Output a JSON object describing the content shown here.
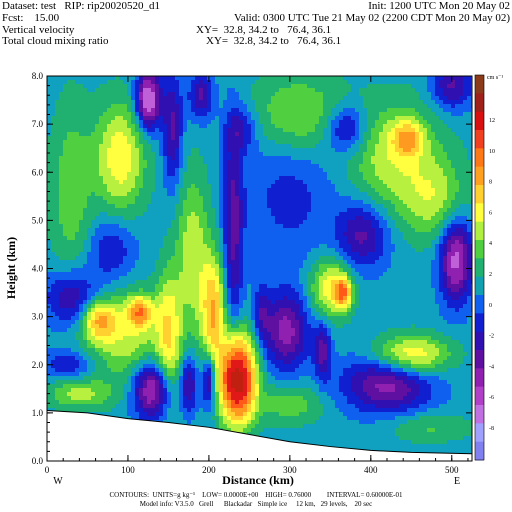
{
  "header": {
    "dataset": "Dataset: test   RIP: rip20020520_d1",
    "init": "Init: 1200 UTC Mon 20 May 02",
    "fcst": "Fcst:    15.00",
    "valid": "Valid: 0300 UTC Tue 21 May 02 (2200 CDT Mon 20 May 02)",
    "field1": "Vertical velocity",
    "xy1": "XY=  32.8, 34.2 to   76.4, 36.1",
    "field2": "Total cloud mixing ratio",
    "xy2": "XY=  32.8, 34.2 to   76.4, 36.1"
  },
  "footer": {
    "contours": "CONTOURS:  UNITS=g kg⁻¹    LOW= 0.0000E+00    HIGH= 0.76000         INTERVAL= 0.60000E-01",
    "model": "Model info: V3.5.0   Grell      Blackadar   Simple ice     12 km,   29 levels,    20 sec"
  },
  "chart_data": {
    "type": "heatmap",
    "title": "",
    "xlabel": "Distance (km)",
    "ylabel": "Height (km)",
    "xlim": [
      0,
      525
    ],
    "ylim": [
      0,
      8
    ],
    "xticks": [
      "0",
      "100",
      "200",
      "300",
      "400",
      "500"
    ],
    "yticks": [
      "0.0",
      "1.0",
      "2.0",
      "3.0",
      "4.0",
      "5.0",
      "6.0",
      "7.0",
      "8.0"
    ],
    "x_end_labels": {
      "left": "W",
      "right": "E"
    },
    "colorbar_unit": "cm s⁻¹",
    "colorbar_labels": [
      "12",
      "10",
      "8",
      "6",
      "4",
      "2",
      "0",
      "-2",
      "-4",
      "-6",
      "-8"
    ],
    "colorbar_colors": [
      "#8b3a1a",
      "#a0201a",
      "#d81010",
      "#f04020",
      "#ff7818",
      "#ffa020",
      "#ffd030",
      "#ffff40",
      "#b0f040",
      "#50d040",
      "#20b070",
      "#10a0b0",
      "#1060f0",
      "#1020d0",
      "#3010b0",
      "#6010a0",
      "#9020b0",
      "#b040c8",
      "#c070e0",
      "#a0a0ff",
      "#8080f0"
    ],
    "background_color": "#1010c8",
    "terrain_km": [
      [
        0,
        1.05
      ],
      [
        50,
        1.0
      ],
      [
        100,
        0.88
      ],
      [
        150,
        0.8
      ],
      [
        200,
        0.7
      ],
      [
        250,
        0.55
      ],
      [
        300,
        0.4
      ],
      [
        350,
        0.3
      ],
      [
        400,
        0.22
      ],
      [
        450,
        0.18
      ],
      [
        525,
        0.15
      ]
    ],
    "features": [
      {
        "x": 40,
        "y": 1.4,
        "rx": 40,
        "ry": 0.3,
        "value": 2.5
      },
      {
        "x": 130,
        "y": 1.5,
        "rx": 24,
        "ry": 0.6,
        "value": -5
      },
      {
        "x": 175,
        "y": 1.6,
        "rx": 10,
        "ry": 0.6,
        "value": -3
      },
      {
        "x": 200,
        "y": 1.7,
        "rx": 9,
        "ry": 0.55,
        "value": -4
      },
      {
        "x": 150,
        "y": 2.6,
        "rx": 15,
        "ry": 1.3,
        "value": 4
      },
      {
        "x": 180,
        "y": 4.3,
        "rx": 20,
        "ry": 1.6,
        "value": 3
      },
      {
        "x": 205,
        "y": 3.1,
        "rx": 14,
        "ry": 1.1,
        "value": 5.5
      },
      {
        "x": 235,
        "y": 1.7,
        "rx": 21,
        "ry": 0.85,
        "value": 12
      },
      {
        "x": 230,
        "y": 4.8,
        "rx": 12,
        "ry": 2.2,
        "value": -3
      },
      {
        "x": 240,
        "y": 6.9,
        "rx": 20,
        "ry": 0.5,
        "value": -2
      },
      {
        "x": 295,
        "y": 2.7,
        "rx": 28,
        "ry": 0.8,
        "value": -4
      },
      {
        "x": 265,
        "y": 3.1,
        "rx": 10,
        "ry": 0.6,
        "value": -2
      },
      {
        "x": 350,
        "y": 3.6,
        "rx": 24,
        "ry": 0.6,
        "value": 4
      },
      {
        "x": 365,
        "y": 3.5,
        "rx": 10,
        "ry": 0.3,
        "value": 6
      },
      {
        "x": 340,
        "y": 2.3,
        "rx": 10,
        "ry": 0.6,
        "value": -3
      },
      {
        "x": 420,
        "y": 1.6,
        "rx": 55,
        "ry": 0.6,
        "value": -4
      },
      {
        "x": 450,
        "y": 2.2,
        "rx": 45,
        "ry": 0.4,
        "value": 4.5
      },
      {
        "x": 100,
        "y": 2.6,
        "rx": 45,
        "ry": 0.9,
        "value": 3
      },
      {
        "x": 65,
        "y": 2.9,
        "rx": 20,
        "ry": 0.4,
        "value": 5
      },
      {
        "x": 115,
        "y": 3.1,
        "rx": 15,
        "ry": 0.3,
        "value": 5.5
      },
      {
        "x": 30,
        "y": 3.4,
        "rx": 32,
        "ry": 0.6,
        "value": -3
      },
      {
        "x": 25,
        "y": 2.0,
        "rx": 30,
        "ry": 0.3,
        "value": -2
      },
      {
        "x": 30,
        "y": 5.6,
        "rx": 25,
        "ry": 1.8,
        "value": 2
      },
      {
        "x": 90,
        "y": 6.3,
        "rx": 30,
        "ry": 1.1,
        "value": 4
      },
      {
        "x": 80,
        "y": 4.4,
        "rx": 30,
        "ry": 0.7,
        "value": -2
      },
      {
        "x": 125,
        "y": 7.5,
        "rx": 15,
        "ry": 0.6,
        "value": -6
      },
      {
        "x": 155,
        "y": 6.9,
        "rx": 12,
        "ry": 1.2,
        "value": -3
      },
      {
        "x": 190,
        "y": 7.6,
        "rx": 15,
        "ry": 0.5,
        "value": -3
      },
      {
        "x": 310,
        "y": 7.2,
        "rx": 55,
        "ry": 0.8,
        "value": 2.5
      },
      {
        "x": 370,
        "y": 6.9,
        "rx": 25,
        "ry": 0.5,
        "value": -3
      },
      {
        "x": 430,
        "y": 6.3,
        "rx": 55,
        "ry": 1.1,
        "value": 3
      },
      {
        "x": 445,
        "y": 6.7,
        "rx": 18,
        "ry": 0.35,
        "value": 4.5
      },
      {
        "x": 390,
        "y": 4.7,
        "rx": 32,
        "ry": 0.7,
        "value": -3
      },
      {
        "x": 480,
        "y": 5.4,
        "rx": 38,
        "ry": 0.8,
        "value": 2.5
      },
      {
        "x": 500,
        "y": 7.8,
        "rx": 25,
        "ry": 0.5,
        "value": -3
      },
      {
        "x": 505,
        "y": 4.2,
        "rx": 20,
        "ry": 0.9,
        "value": -5
      },
      {
        "x": 300,
        "y": 5.5,
        "rx": 60,
        "ry": 1.4,
        "value": -1.5
      },
      {
        "x": 300,
        "y": 1.2,
        "rx": 40,
        "ry": 0.4,
        "value": 2
      },
      {
        "x": 470,
        "y": 0.7,
        "rx": 50,
        "ry": 0.3,
        "value": 1.5
      }
    ]
  }
}
